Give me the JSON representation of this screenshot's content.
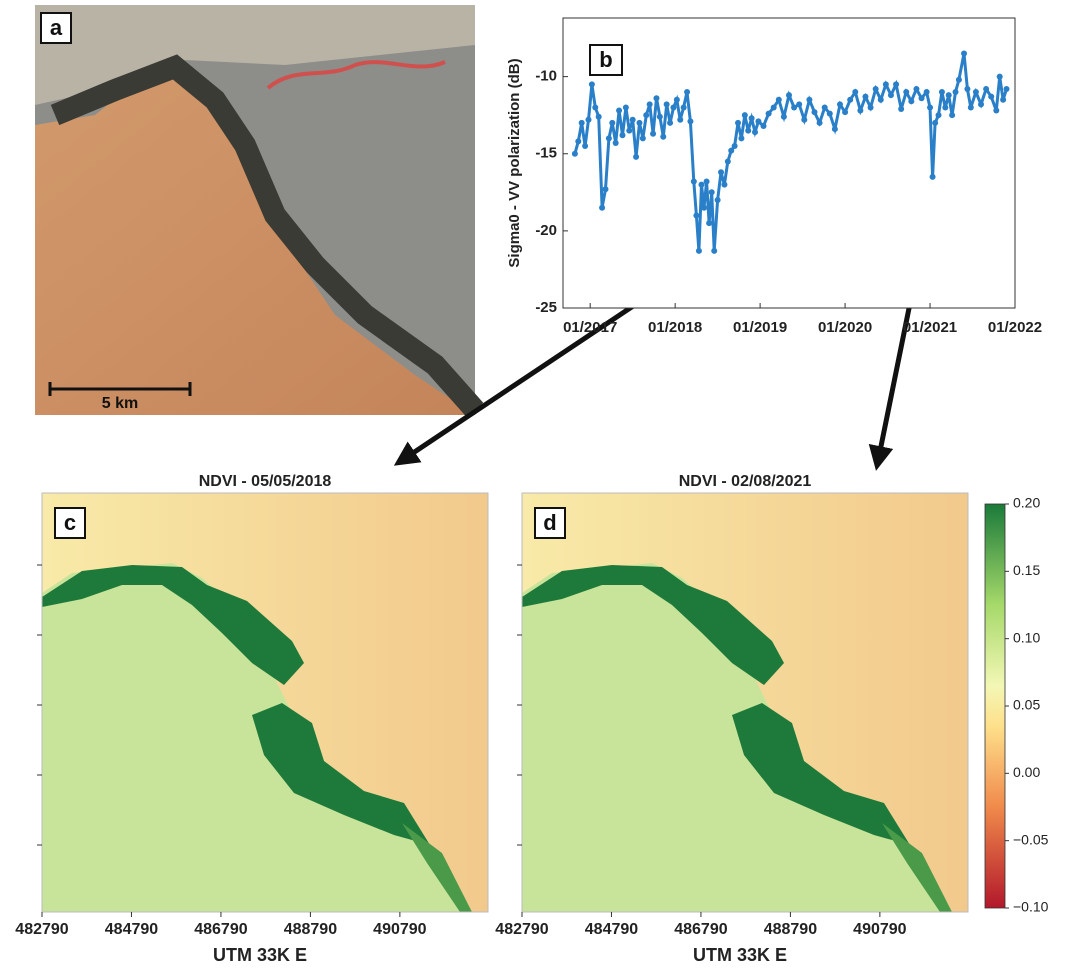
{
  "image": {
    "label": "a",
    "scale_label": "5 km"
  },
  "chart_data": [
    {
      "type": "line",
      "label": "b",
      "ylabel": "Sigma0 - VV polarization (dB)",
      "color": "#2a7fc9",
      "x": [
        2016.82,
        2016.86,
        2016.9,
        2016.94,
        2016.98,
        2017.02,
        2017.06,
        2017.1,
        2017.14,
        2017.18,
        2017.22,
        2017.26,
        2017.3,
        2017.34,
        2017.38,
        2017.42,
        2017.46,
        2017.5,
        2017.54,
        2017.58,
        2017.62,
        2017.66,
        2017.7,
        2017.74,
        2017.78,
        2017.82,
        2017.86,
        2017.9,
        2017.94,
        2017.98,
        2018.02,
        2018.06,
        2018.1,
        2018.14,
        2018.18,
        2018.22,
        2018.25,
        2018.28,
        2018.31,
        2018.34,
        2018.37,
        2018.4,
        2018.43,
        2018.46,
        2018.5,
        2018.54,
        2018.58,
        2018.62,
        2018.66,
        2018.7,
        2018.74,
        2018.78,
        2018.82,
        2018.86,
        2018.9,
        2018.94,
        2018.98,
        2019.04,
        2019.1,
        2019.16,
        2019.22,
        2019.28,
        2019.34,
        2019.4,
        2019.46,
        2019.52,
        2019.58,
        2019.64,
        2019.7,
        2019.76,
        2019.82,
        2019.88,
        2019.94,
        2020.0,
        2020.06,
        2020.12,
        2020.18,
        2020.24,
        2020.3,
        2020.36,
        2020.42,
        2020.48,
        2020.54,
        2020.6,
        2020.66,
        2020.72,
        2020.78,
        2020.84,
        2020.9,
        2020.96,
        2021.0,
        2021.03,
        2021.06,
        2021.1,
        2021.14,
        2021.18,
        2021.22,
        2021.26,
        2021.3,
        2021.34,
        2021.4,
        2021.44,
        2021.48,
        2021.54,
        2021.6,
        2021.66,
        2021.72,
        2021.78,
        2021.82,
        2021.86,
        2021.9
      ],
      "values": [
        -15.0,
        -14.2,
        -13.0,
        -14.5,
        -12.8,
        -10.5,
        -12.0,
        -12.6,
        -18.5,
        -17.3,
        -14.0,
        -13.0,
        -14.3,
        -12.2,
        -13.8,
        -12.0,
        -13.5,
        -12.8,
        -15.2,
        -13.0,
        -14.0,
        -12.5,
        -11.8,
        -13.7,
        -11.4,
        -12.6,
        -13.9,
        -11.8,
        -13.0,
        -12.0,
        -11.5,
        -12.8,
        -12.0,
        -11.0,
        -12.9,
        -16.8,
        -19.0,
        -21.3,
        -17.0,
        -18.5,
        -16.8,
        -19.5,
        -17.5,
        -21.3,
        -18.0,
        -16.2,
        -17.0,
        -15.5,
        -14.8,
        -14.5,
        -13.0,
        -14.0,
        -12.5,
        -13.5,
        -12.7,
        -13.6,
        -12.9,
        -13.2,
        -12.4,
        -12.0,
        -11.5,
        -12.6,
        -11.2,
        -12.0,
        -11.8,
        -12.8,
        -11.5,
        -12.3,
        -13.0,
        -12.0,
        -12.4,
        -13.4,
        -11.8,
        -12.3,
        -11.5,
        -11.0,
        -12.2,
        -11.3,
        -12.0,
        -10.8,
        -11.5,
        -10.5,
        -11.2,
        -10.5,
        -12.1,
        -11.0,
        -11.6,
        -10.8,
        -11.4,
        -11.0,
        -12.0,
        -16.5,
        -13.0,
        -12.5,
        -11.0,
        -12.0,
        -11.2,
        -12.5,
        -11.0,
        -10.2,
        -8.5,
        -10.8,
        -12.0,
        -11.0,
        -11.8,
        -10.8,
        -11.3,
        -12.2,
        -10.0,
        -11.5,
        -10.8
      ],
      "xlim": [
        2016.68,
        2022.0
      ],
      "xticks": [
        {
          "value": 2017,
          "label": "01/2017"
        },
        {
          "value": 2018,
          "label": "01/2018"
        },
        {
          "value": 2019,
          "label": "01/2019"
        },
        {
          "value": 2020,
          "label": "01/2020"
        },
        {
          "value": 2021,
          "label": "01/2021"
        },
        {
          "value": 2022,
          "label": "01/2022"
        }
      ],
      "ylim": [
        -25,
        -6.2
      ],
      "yticks": [
        -10,
        -15,
        -20,
        -25
      ]
    },
    {
      "type": "heatmap",
      "label": "c",
      "title": "NDVI - 05/05/2018",
      "xlabel": "UTM 33K E",
      "xlim": [
        482790,
        492760
      ],
      "xticks": [
        482790,
        484790,
        486790,
        488790,
        490790
      ]
    },
    {
      "type": "heatmap",
      "label": "d",
      "title": "NDVI - 02/08/2021",
      "xlabel": "UTM 33K E",
      "xlim": [
        482790,
        492760
      ],
      "xticks": [
        482790,
        484790,
        486790,
        488790,
        490790
      ],
      "colorbar": {
        "ylim": [
          -0.1,
          0.2
        ],
        "ticks": [
          {
            "value": 0.2,
            "label": "0.20"
          },
          {
            "value": 0.15,
            "label": "0.15"
          },
          {
            "value": 0.1,
            "label": "0.10"
          },
          {
            "value": 0.05,
            "label": "0.05"
          },
          {
            "value": 0,
            "label": "0.00"
          },
          {
            "value": -0.05,
            "label": "−0.05"
          },
          {
            "value": -0.1,
            "label": "−0.10"
          }
        ]
      }
    }
  ]
}
